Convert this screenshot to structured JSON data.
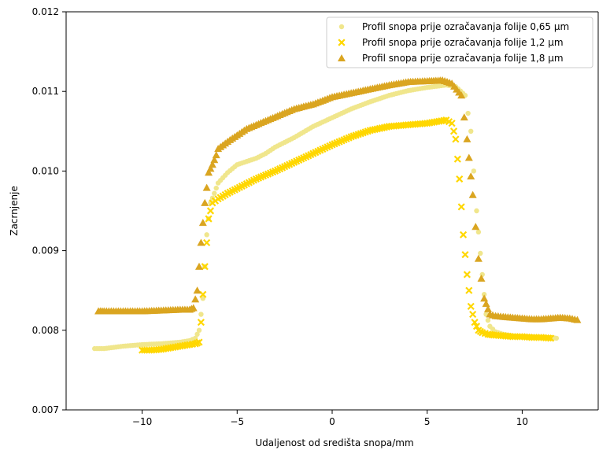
{
  "chart_data": {
    "type": "scatter",
    "title": "",
    "xlabel": "Udaljenost od središta snopa/mm",
    "ylabel": "Zacrnjenje",
    "xlim": [
      -14,
      14
    ],
    "ylim": [
      0.007,
      0.012
    ],
    "xticks": [
      -10,
      -5,
      0,
      5,
      10
    ],
    "xtick_labels": [
      "−10",
      "−5",
      "0",
      "5",
      "10"
    ],
    "yticks": [
      0.007,
      0.008,
      0.009,
      0.01,
      0.011,
      0.012
    ],
    "ytick_labels": [
      "0.007",
      "0.008",
      "0.009",
      "0.010",
      "0.011",
      "0.012"
    ],
    "grid": false,
    "legend_position": "top-right",
    "series": [
      {
        "name": "Profil snopa prije ozračavanja folije 0,65 µm",
        "marker": "circle",
        "color": "#f0e68c",
        "x": [
          -12.5,
          -12,
          -11,
          -10,
          -9,
          -8,
          -7.5,
          -7.2,
          -7.0,
          -6.8,
          -6.6,
          -6.4,
          -6.2,
          -6.0,
          -5.5,
          -5,
          -4.5,
          -4,
          -3.5,
          -3,
          -2,
          -1,
          0,
          1,
          2,
          3,
          4,
          5,
          6,
          6.5,
          7.0,
          7.3,
          7.6,
          7.9,
          8.1,
          8.3,
          8.6,
          9,
          9.5,
          10,
          10.5,
          11,
          11.5,
          11.8
        ],
        "y": [
          0.00777,
          0.00777,
          0.0078,
          0.00782,
          0.00783,
          0.00785,
          0.00787,
          0.0079,
          0.008,
          0.0084,
          0.0092,
          0.0096,
          0.00972,
          0.00985,
          0.00998,
          0.01008,
          0.01012,
          0.01016,
          0.01022,
          0.0103,
          0.01042,
          0.01056,
          0.01067,
          0.01078,
          0.01087,
          0.01095,
          0.01101,
          0.01105,
          0.01108,
          0.01106,
          0.01095,
          0.0105,
          0.0095,
          0.0087,
          0.0082,
          0.00805,
          0.00798,
          0.00795,
          0.00793,
          0.00792,
          0.00792,
          0.00791,
          0.00791,
          0.0079
        ]
      },
      {
        "name": "Profil snopa prije ozračavanja folije 1,2 µm",
        "marker": "x",
        "color": "#ffd700",
        "x": [
          -10,
          -9.5,
          -9,
          -8.5,
          -8,
          -7.5,
          -7.2,
          -7.0,
          -6.9,
          -6.7,
          -6.5,
          -6.3,
          -6.0,
          -5.5,
          -5,
          -4.5,
          -4,
          -3.5,
          -3,
          -2,
          -1,
          0,
          1,
          2,
          3,
          4,
          5,
          6,
          6.3,
          6.5,
          6.7,
          6.9,
          7.1,
          7.3,
          7.5,
          7.7,
          7.9,
          8.2,
          8.5,
          9,
          9.5,
          10,
          10.5,
          11,
          11.5
        ],
        "y": [
          0.00775,
          0.00775,
          0.00776,
          0.00778,
          0.0078,
          0.00782,
          0.00783,
          0.00785,
          0.0081,
          0.0088,
          0.0094,
          0.0096,
          0.00965,
          0.00972,
          0.00978,
          0.00984,
          0.0099,
          0.00995,
          0.01,
          0.01011,
          0.01022,
          0.01033,
          0.01043,
          0.01051,
          0.01056,
          0.01058,
          0.0106,
          0.01064,
          0.0106,
          0.0104,
          0.0099,
          0.0092,
          0.0087,
          0.0083,
          0.0081,
          0.008,
          0.00797,
          0.00795,
          0.00794,
          0.00793,
          0.00792,
          0.00792,
          0.00791,
          0.00791,
          0.0079
        ]
      },
      {
        "name": "Profil snopa prije ozračavanja folije 1,8 µm",
        "marker": "triangle",
        "color": "#daa520",
        "x": [
          -12.3,
          -12,
          -11,
          -10,
          -9,
          -8,
          -7.5,
          -7.3,
          -7.1,
          -6.9,
          -6.7,
          -6.5,
          -6.3,
          -6.1,
          -6.0,
          -5.5,
          -5,
          -4.5,
          -4,
          -3.5,
          -3,
          -2,
          -1,
          0,
          1,
          2,
          3,
          4,
          5,
          5.8,
          6.3,
          6.8,
          7.1,
          7.4,
          7.7,
          8.0,
          8.3,
          8.6,
          9,
          9.5,
          10,
          10.5,
          11,
          11.5,
          12,
          12.5,
          12.9
        ],
        "y": [
          0.00824,
          0.00824,
          0.00824,
          0.00824,
          0.00825,
          0.00826,
          0.00826,
          0.00828,
          0.0085,
          0.0091,
          0.0096,
          0.00998,
          0.01008,
          0.0102,
          0.01028,
          0.01037,
          0.01045,
          0.01053,
          0.01058,
          0.01063,
          0.01068,
          0.01078,
          0.01084,
          0.01093,
          0.01098,
          0.01103,
          0.01108,
          0.01112,
          0.01113,
          0.01114,
          0.0111,
          0.01095,
          0.0104,
          0.0097,
          0.0089,
          0.0084,
          0.0082,
          0.00818,
          0.00817,
          0.00816,
          0.00815,
          0.00814,
          0.00814,
          0.00815,
          0.00816,
          0.00815,
          0.00813
        ]
      }
    ]
  }
}
